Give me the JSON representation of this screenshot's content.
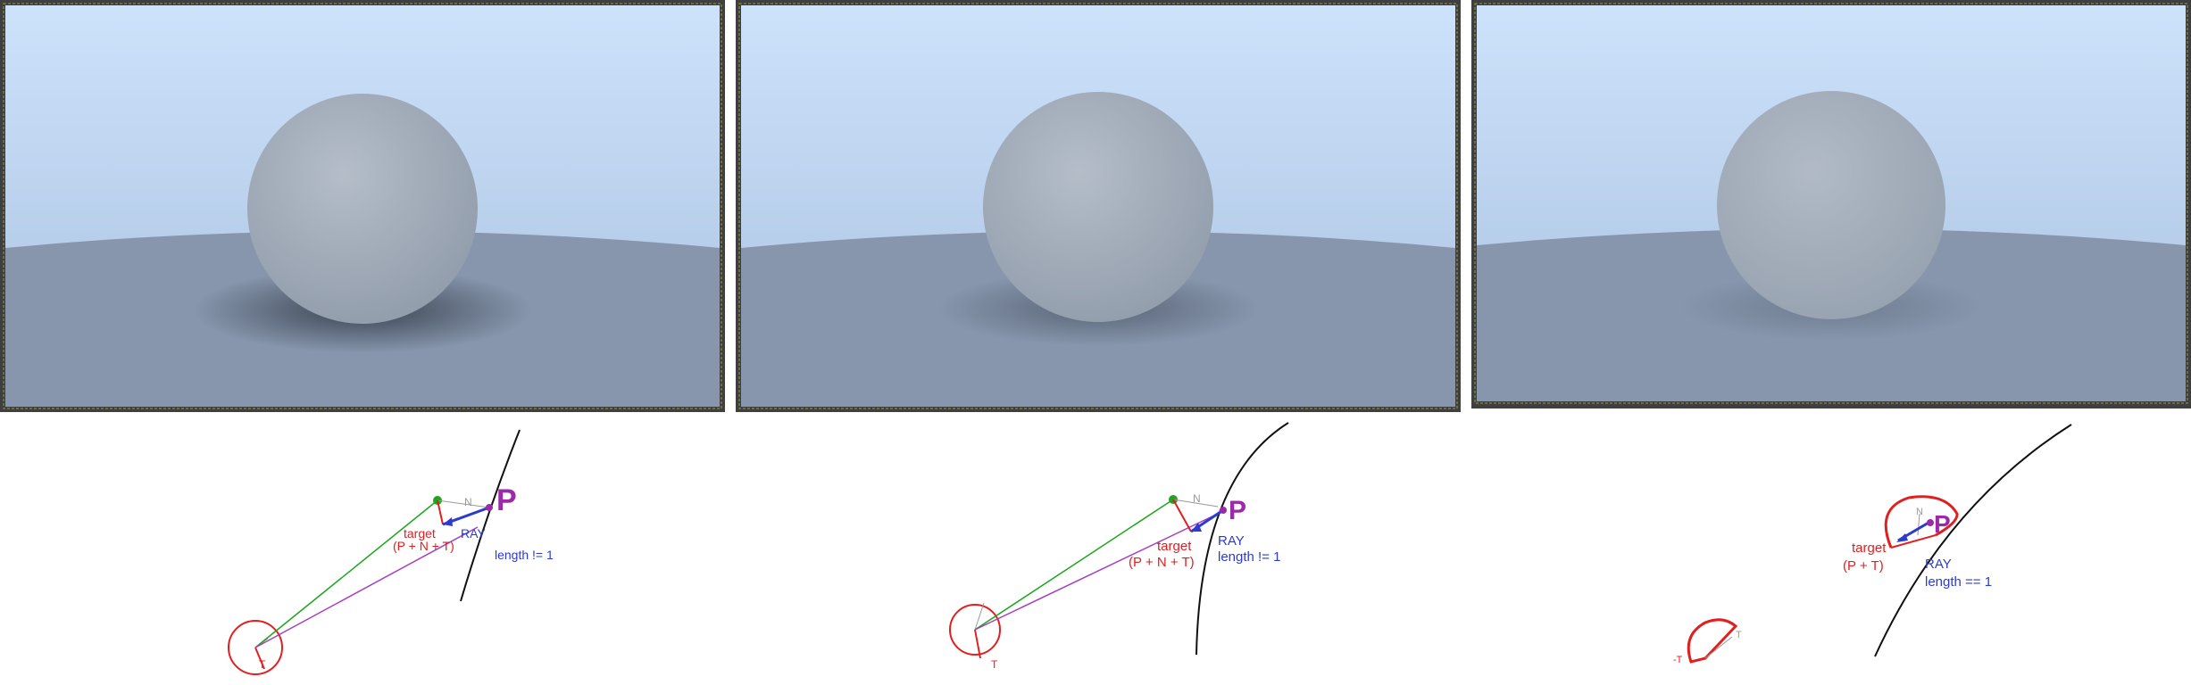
{
  "colors": {
    "sky_top": "#cde2fb",
    "sky_bottom": "#a9c1df",
    "ground": "#8796ad",
    "sphere": "#a7b1bd",
    "frame_dark": "#3f3f3f",
    "target_red": "#e02020",
    "ray_blue": "#2c3ad0",
    "p_purple": "#9b2aa8",
    "normal_green": "#1fa51f"
  },
  "panels": [
    {
      "name": "render-1",
      "diagram": {
        "p_label": "P",
        "n_label": "N",
        "t_label": "T",
        "target_label": "target",
        "target_formula": "(P + N + T)",
        "ray_label": "RAY",
        "length_label": "length != 1"
      }
    },
    {
      "name": "render-2",
      "diagram": {
        "p_label": "P",
        "n_label": "N",
        "t_label": "T",
        "target_label": "target",
        "target_formula": "(P + N + T)",
        "ray_label": "RAY",
        "length_label": "length != 1"
      }
    },
    {
      "name": "render-3",
      "diagram": {
        "p_label": "P",
        "n_label": "N",
        "t_label": "T",
        "neg_t_label": "-T",
        "target_label": "target",
        "target_formula": "(P + T)",
        "ray_label": "RAY",
        "length_label": "length == 1"
      }
    }
  ]
}
